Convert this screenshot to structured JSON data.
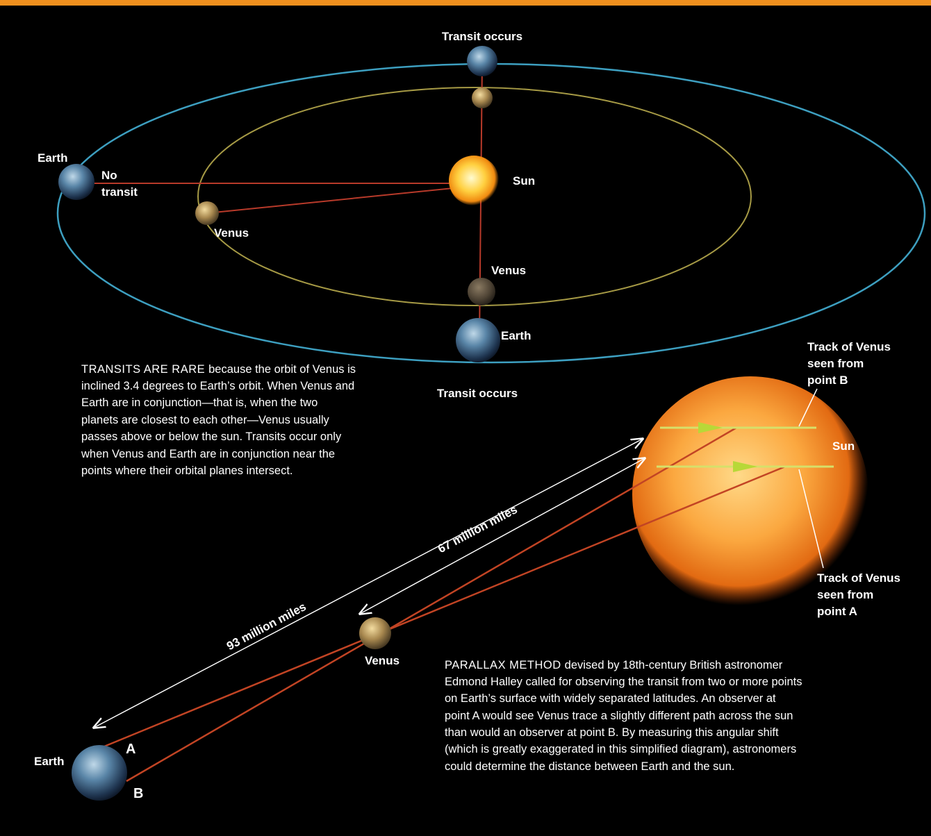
{
  "orbit_diagram": {
    "transit_top": "Transit occurs",
    "earth_left": "Earth",
    "no_transit": [
      "No",
      "transit"
    ],
    "sun": "Sun",
    "venus_left": "Venus",
    "venus_bottom": "Venus",
    "earth_bottom": "Earth",
    "transit_bottom": "Transit occurs"
  },
  "orbit_caption": {
    "lead": "TRANSITS ARE RARE",
    "lines": [
      "because the orbit of Venus is",
      "inclined 3.4 degrees to Earth’s orbit. When Venus and",
      "Earth are in conjunction—that is, when the two",
      "planets are closest to each other—Venus usually",
      "passes above or below the sun. Transits occur only",
      "when Venus and Earth are in conjunction near the",
      "points where their orbital planes intersect."
    ]
  },
  "parallax_diagram": {
    "track_b": [
      "Track of Venus",
      "seen from",
      "point B"
    ],
    "sun": "Sun",
    "track_a": [
      "Track of Venus",
      "seen from",
      "point A"
    ],
    "distance_sun": "93 million miles",
    "distance_venus": "67 million miles",
    "venus": "Venus",
    "earth": "Earth",
    "point_a": "A",
    "point_b": "B"
  },
  "parallax_caption": {
    "lead": "PARALLAX METHOD",
    "lines": [
      "devised by 18th-century British astronomer",
      "Edmond Halley called for observing the transit from two or more points",
      "on Earth’s surface with widely separated latitudes. An observer at",
      "point A would see Venus trace a slightly different path across the sun",
      "than would an observer at point B. By measuring this angular shift",
      "(which is greatly exaggerated in this simplified diagram), astronomers",
      "could determine the distance between Earth and the sun."
    ]
  }
}
